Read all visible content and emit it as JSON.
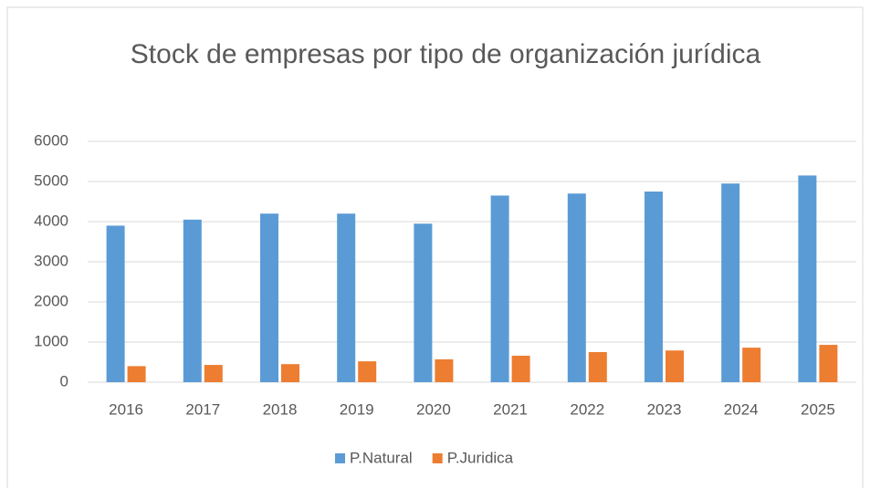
{
  "chart_data": {
    "type": "bar",
    "title": "Stock de empresas por tipo de organización jurídica",
    "categories": [
      "2016",
      "2017",
      "2018",
      "2019",
      "2020",
      "2021",
      "2022",
      "2023",
      "2024",
      "2025"
    ],
    "series": [
      {
        "name": "P.Natural",
        "color": "#5b9bd5",
        "values": [
          3900,
          4050,
          4200,
          4200,
          3950,
          4650,
          4700,
          4750,
          4950,
          5150
        ]
      },
      {
        "name": "P.Juridica",
        "color": "#ed7d31",
        "values": [
          400,
          430,
          450,
          520,
          570,
          660,
          750,
          790,
          860,
          930
        ]
      }
    ],
    "ylim": [
      0,
      6000
    ],
    "yticks": [
      0,
      1000,
      2000,
      3000,
      4000,
      5000,
      6000
    ],
    "grid": true,
    "legend": "bottom"
  }
}
